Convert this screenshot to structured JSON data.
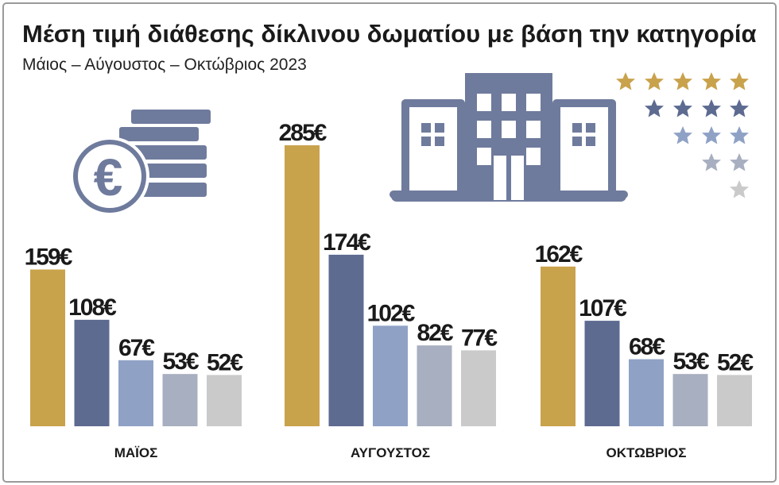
{
  "chart_data": {
    "type": "bar",
    "title": "Μέση τιμή διάθεσης δίκλινου δωματίου με βάση την κατηγορία",
    "subtitle": "Μάιος – Αύγουστος – Οκτώβριος 2023",
    "categories": [
      "ΜΑΪΟΣ",
      "ΑΥΓΟΥΣΤΟΣ",
      "ΟΚΤΩΒΡΙΟΣ"
    ],
    "series": [
      {
        "color": "#c9a24c",
        "values": [
          159,
          285,
          162
        ],
        "value_labels": [
          "159€",
          "285€",
          "162€"
        ]
      },
      {
        "color": "#5d6b91",
        "values": [
          108,
          174,
          107
        ],
        "value_labels": [
          "108€",
          "174€",
          "107€"
        ]
      },
      {
        "color": "#8fa2c6",
        "values": [
          67,
          102,
          68
        ],
        "value_labels": [
          "67€",
          "102€",
          "68€"
        ]
      },
      {
        "color": "#a8afc0",
        "values": [
          53,
          82,
          53
        ],
        "value_labels": [
          "53€",
          "82€",
          "53€"
        ]
      },
      {
        "color": "#cacaca",
        "values": [
          52,
          77,
          52
        ],
        "value_labels": [
          "52€",
          "77€",
          "52€"
        ]
      }
    ]
  }
}
